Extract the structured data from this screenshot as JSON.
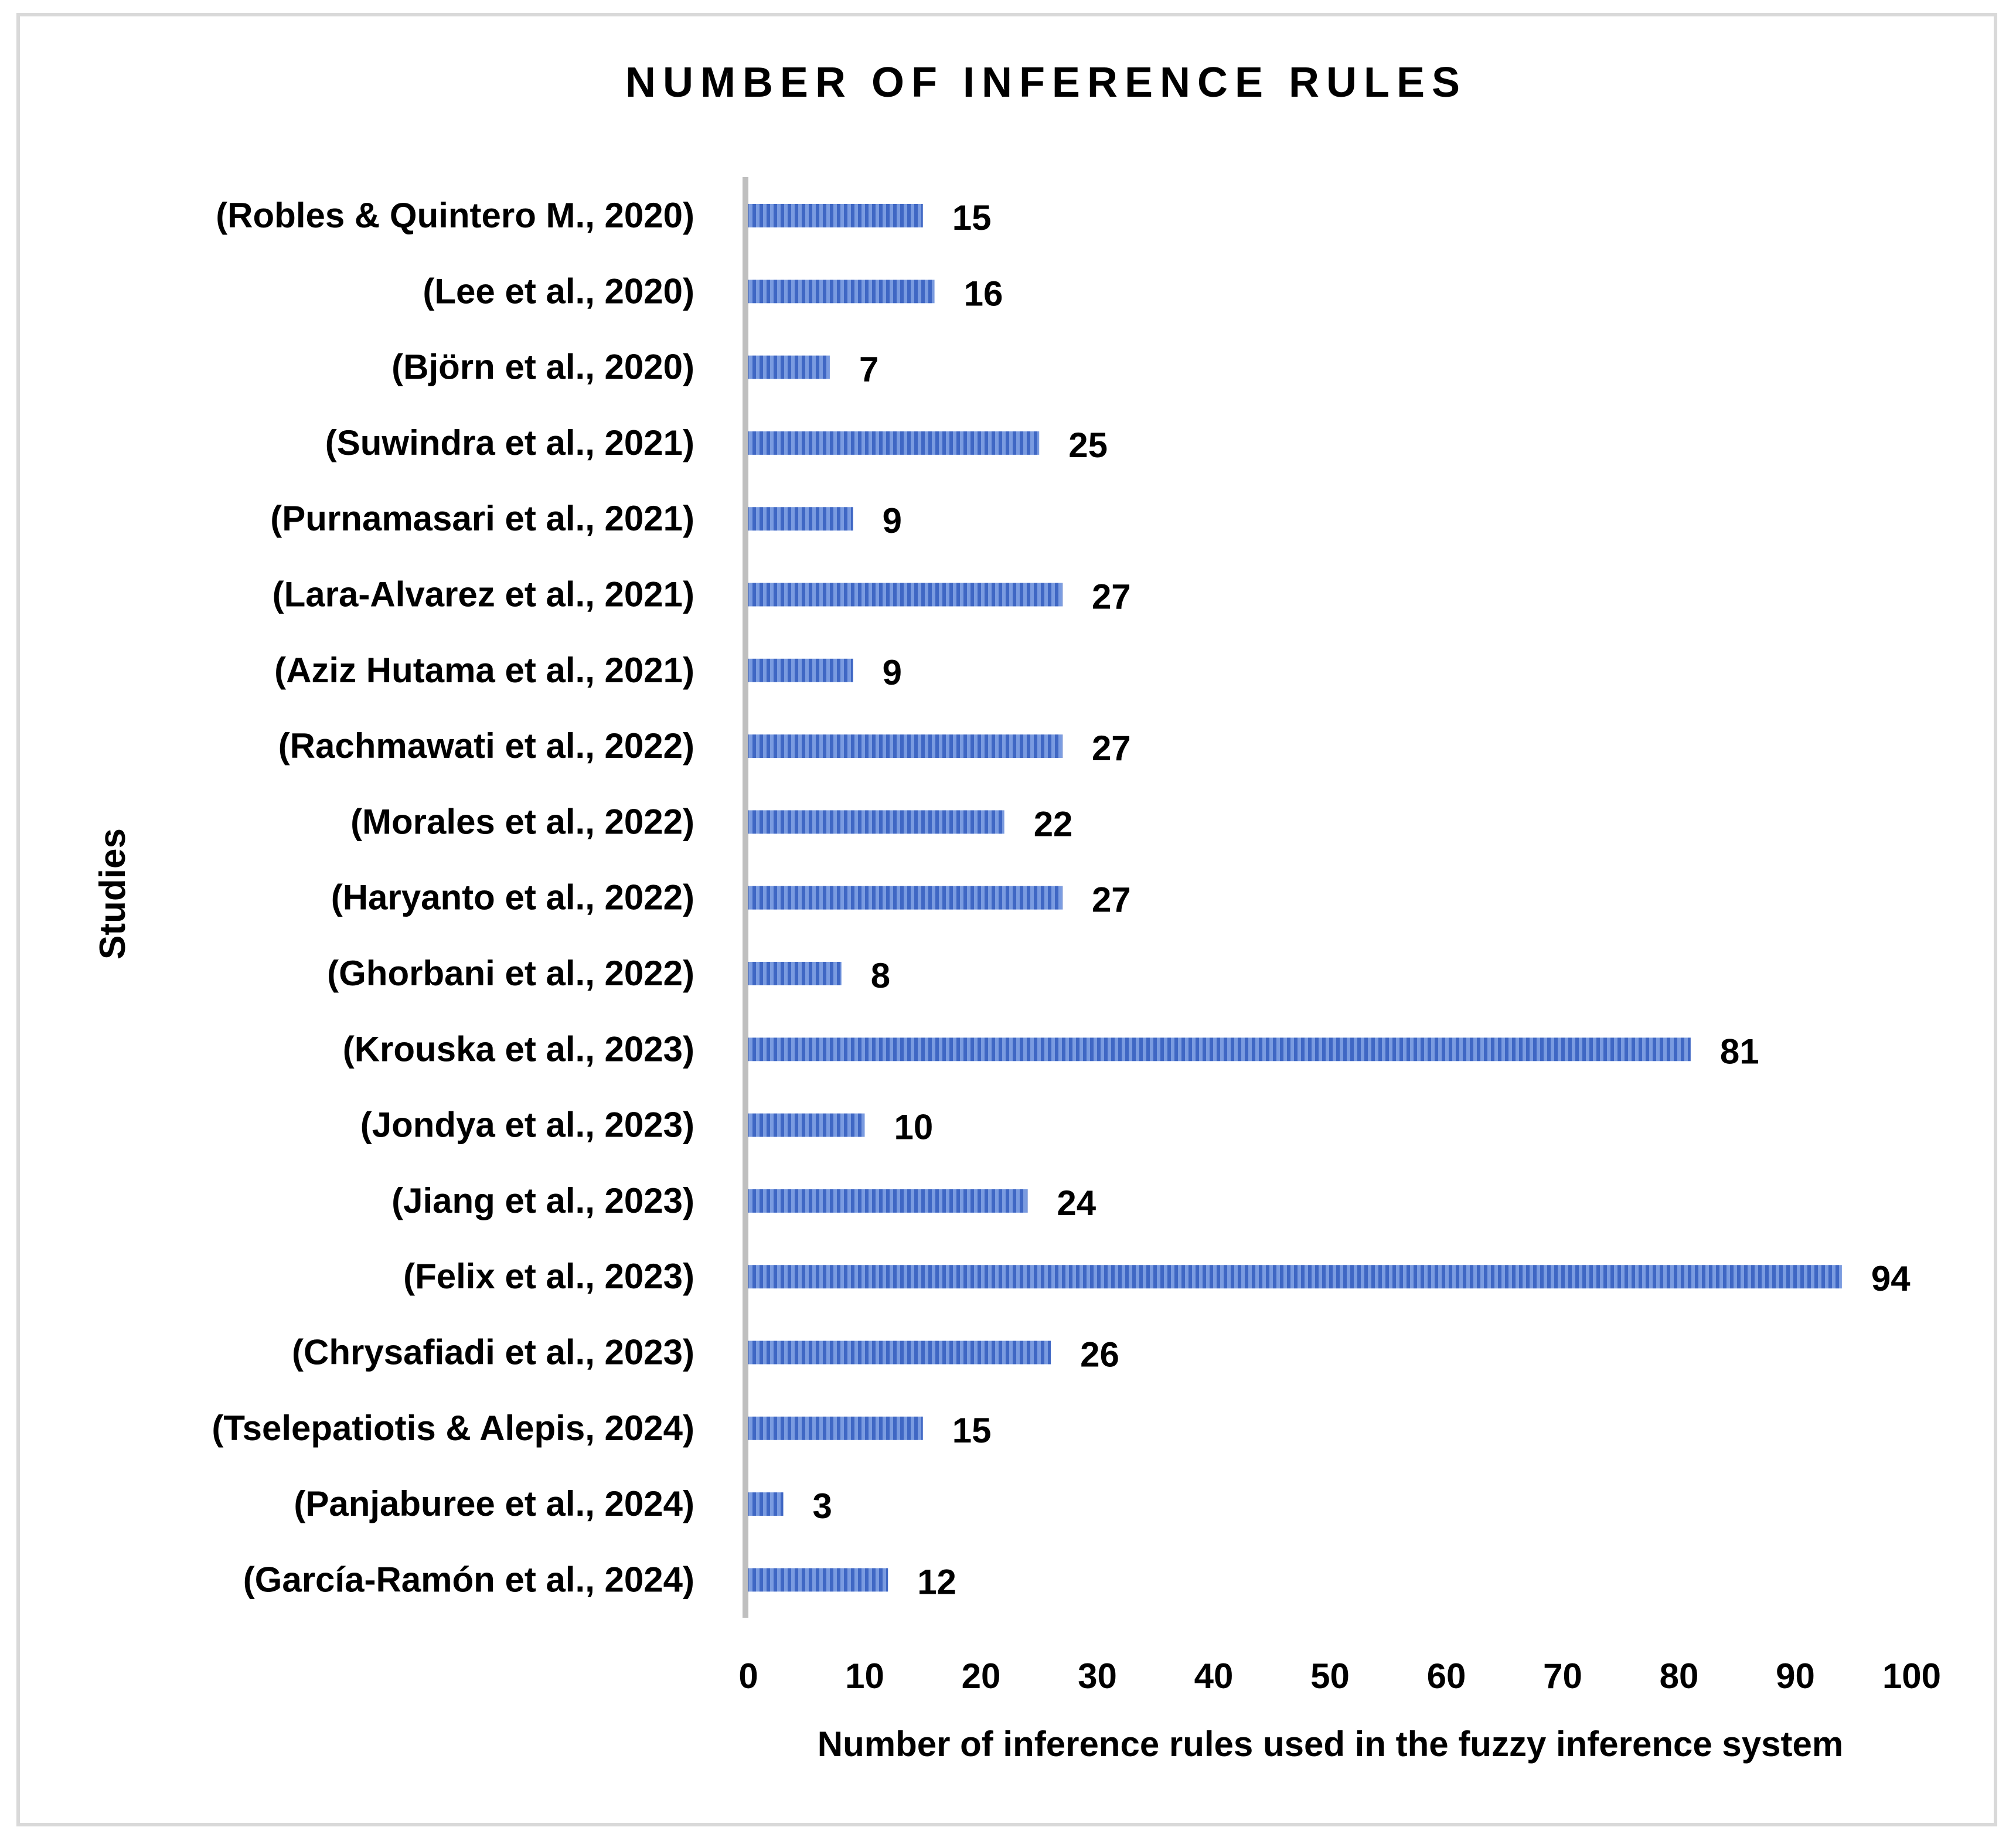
{
  "chart_data": {
    "type": "bar",
    "orientation": "horizontal",
    "title": "NUMBER OF INFERENCE RULES",
    "xlabel": "Number of inference rules used in the fuzzy inference system",
    "ylabel": "Studies",
    "xlim": [
      0,
      100
    ],
    "xticks": [
      "0",
      "10",
      "20",
      "30",
      "40",
      "50",
      "60",
      "70",
      "80",
      "90",
      "100"
    ],
    "grid": false,
    "legend": "none",
    "bar_color": "#4472c4",
    "categories": [
      "(Robles & Quintero M., 2020)",
      "(Lee et al., 2020)",
      "(Björn et al., 2020)",
      "(Suwindra et al., 2021)",
      "(Purnamasari et al., 2021)",
      "(Lara-Alvarez et al., 2021)",
      "(Aziz Hutama et al., 2021)",
      "(Rachmawati et al., 2022)",
      "(Morales et al., 2022)",
      "(Haryanto et al., 2022)",
      "(Ghorbani et al., 2022)",
      "(Krouska et al., 2023)",
      "(Jondya et al., 2023)",
      "(Jiang et al., 2023)",
      "(Felix et al., 2023)",
      "(Chrysafiadi et al., 2023)",
      "(Tselepatiotis & Alepis, 2024)",
      "(Panjaburee et al., 2024)",
      "(García-Ramón et al., 2024)"
    ],
    "values": [
      15,
      16,
      7,
      25,
      9,
      27,
      9,
      27,
      22,
      27,
      8,
      81,
      10,
      24,
      94,
      26,
      15,
      3,
      12
    ]
  }
}
